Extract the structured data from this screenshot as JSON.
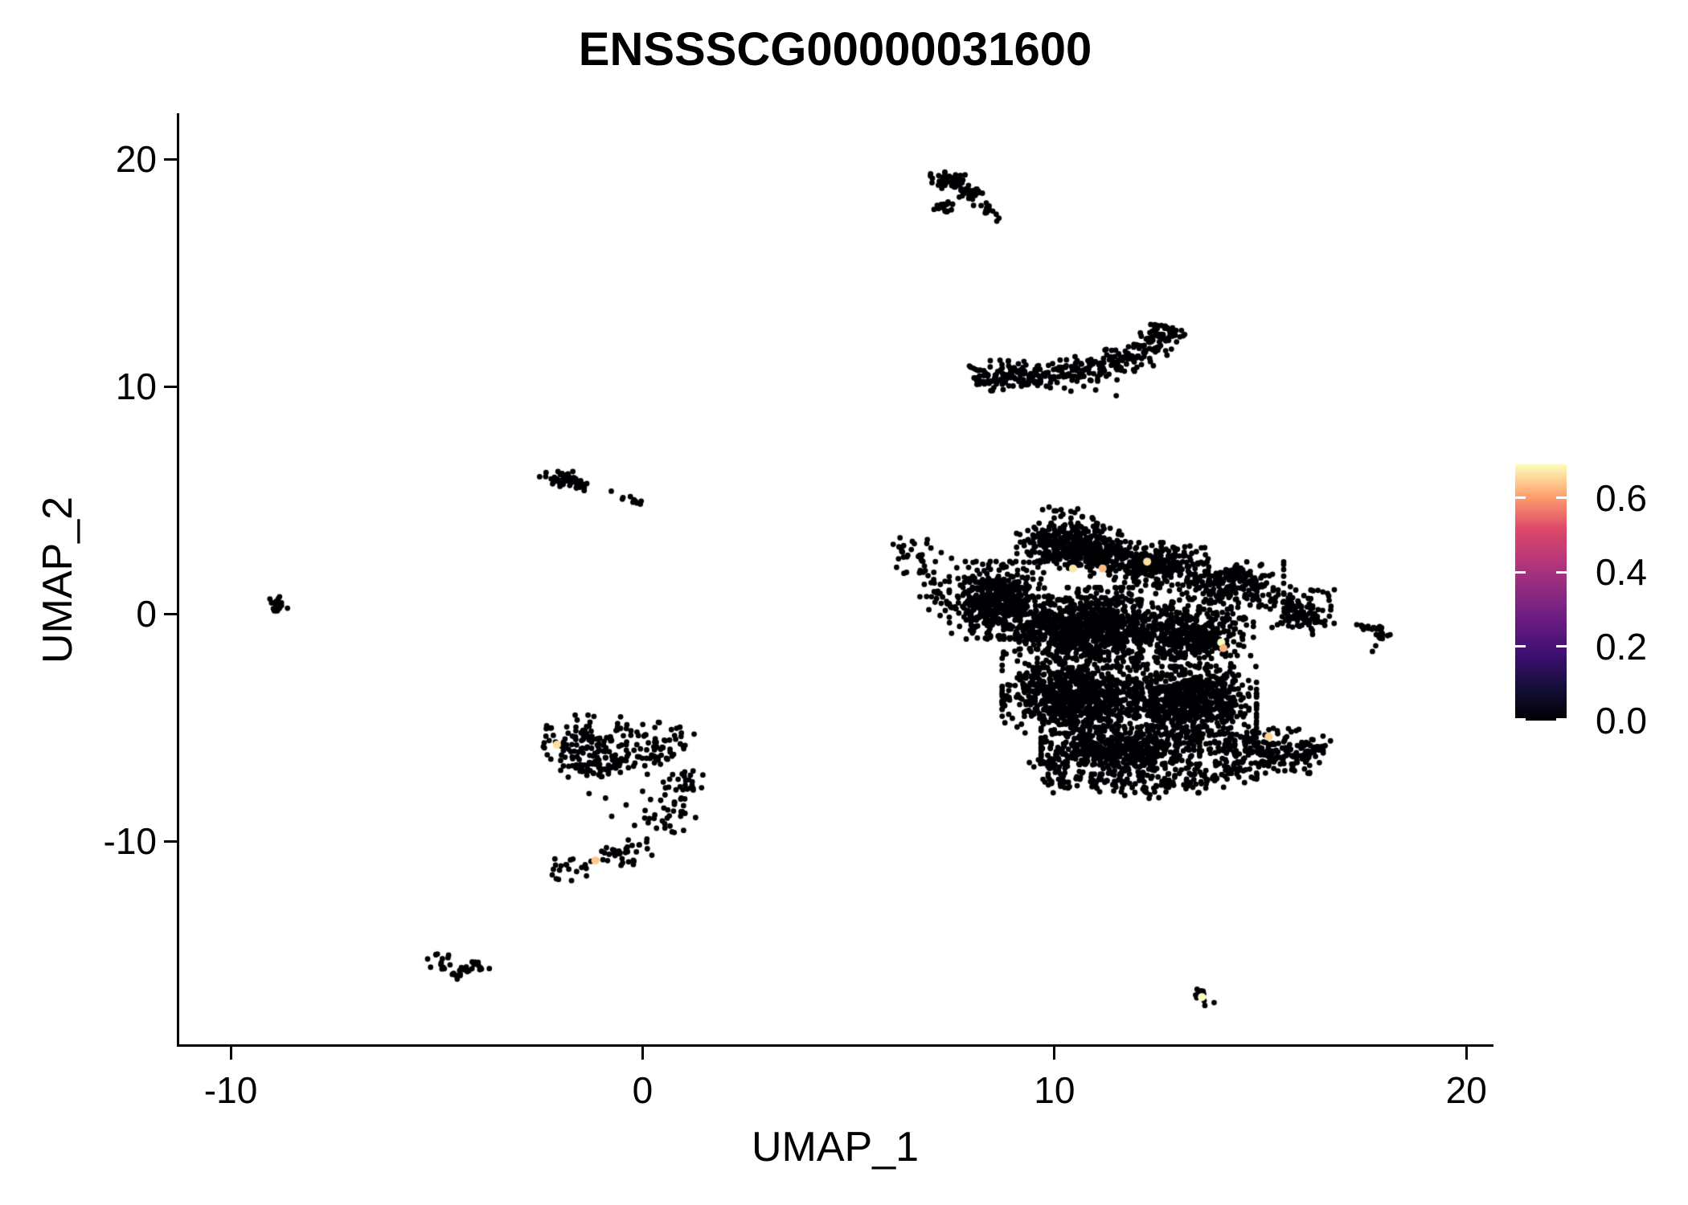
{
  "chart_data": {
    "type": "scatter",
    "title": "ENSSSCG00000031600",
    "xlabel": "UMAP_1",
    "ylabel": "UMAP_2",
    "x_range": [
      -11.25,
      20.6
    ],
    "y_range": [
      -19.0,
      21.95
    ],
    "grid": false,
    "axes": {
      "x": {
        "tick_values": [
          -10,
          0,
          10,
          20
        ],
        "tick_labels": [
          "-10",
          "0",
          "10",
          "20"
        ]
      },
      "y": {
        "tick_values": [
          20,
          10,
          0,
          -10
        ],
        "tick_labels": [
          "20",
          "10",
          "0",
          "-10"
        ]
      }
    },
    "legend": {
      "position": "right",
      "tick_values": [
        0.6,
        0.4,
        0.2,
        0.0
      ],
      "tick_labels": [
        "0.6",
        "0.4",
        "0.2",
        "0.0"
      ],
      "min": 0.0,
      "max": 0.69,
      "colormap": "magma",
      "stops": [
        [
          0.0,
          "#000004"
        ],
        [
          0.125,
          "#140e36"
        ],
        [
          0.25,
          "#3b0f70"
        ],
        [
          0.375,
          "#641a80"
        ],
        [
          0.5,
          "#8c2981"
        ],
        [
          0.625,
          "#b73779"
        ],
        [
          0.75,
          "#de4968"
        ],
        [
          0.875,
          "#fe9f6d"
        ],
        [
          0.9375,
          "#fecf92"
        ],
        [
          1.0,
          "#fcfdbf"
        ]
      ]
    },
    "point_color_zero": "#000004",
    "point_radius_px": 3.4,
    "clusters": [
      {
        "name": "top-comet",
        "parts": [
          {
            "kind": "blob",
            "cx": 7.45,
            "cy": 19.05,
            "rx": 0.42,
            "ry": 0.4,
            "n": 55
          },
          {
            "kind": "blob",
            "cx": 7.95,
            "cy": 18.55,
            "rx": 0.33,
            "ry": 0.3,
            "n": 30
          },
          {
            "kind": "blob",
            "cx": 7.35,
            "cy": 17.95,
            "rx": 0.25,
            "ry": 0.3,
            "n": 16
          },
          {
            "kind": "path",
            "w": 0.09,
            "n": 14,
            "pts": [
              [
                8.15,
                18.15
              ],
              [
                8.35,
                17.85
              ],
              [
                8.55,
                17.55
              ],
              [
                8.68,
                17.3
              ]
            ]
          }
        ]
      },
      {
        "name": "crescent",
        "parts": [
          {
            "kind": "path",
            "w": 0.3,
            "n": 340,
            "pts": [
              [
                7.95,
                10.45
              ],
              [
                8.7,
                10.5
              ],
              [
                9.5,
                10.55
              ],
              [
                10.3,
                10.6
              ],
              [
                11.0,
                10.75
              ],
              [
                11.6,
                11.05
              ],
              [
                12.1,
                11.55
              ],
              [
                12.5,
                12.1
              ],
              [
                12.8,
                12.65
              ]
            ]
          },
          {
            "kind": "path",
            "w": 0.1,
            "n": 22,
            "pts": [
              [
                8.0,
                10.3
              ],
              [
                8.8,
                10.25
              ],
              [
                9.6,
                10.2
              ]
            ]
          },
          {
            "kind": "dots",
            "pts": [
              [
                9.2,
                10.05
              ],
              [
                9.9,
                9.95
              ],
              [
                10.4,
                9.8
              ],
              [
                11.0,
                9.85
              ],
              [
                11.5,
                9.6
              ]
            ]
          }
        ]
      },
      {
        "name": "left-small",
        "parts": [
          {
            "kind": "blob",
            "cx": -1.95,
            "cy": 5.9,
            "rx": 0.5,
            "ry": 0.33,
            "n": 50
          },
          {
            "kind": "blob",
            "cx": -1.55,
            "cy": 5.55,
            "rx": 0.3,
            "ry": 0.2,
            "n": 14
          },
          {
            "kind": "dots",
            "pts": [
              [
                -0.76,
                5.4
              ]
            ]
          },
          {
            "kind": "path",
            "w": 0.07,
            "n": 9,
            "pts": [
              [
                -0.5,
                5.1
              ],
              [
                -0.25,
                4.95
              ],
              [
                -0.05,
                4.85
              ]
            ]
          }
        ]
      },
      {
        "name": "far-left-tiny",
        "parts": [
          {
            "kind": "blob",
            "cx": -8.85,
            "cy": 0.45,
            "rx": 0.26,
            "ry": 0.28,
            "n": 20
          }
        ]
      },
      {
        "name": "hook",
        "parts": [
          {
            "kind": "path",
            "w": 0.5,
            "n": 180,
            "pts": [
              [
                -2.4,
                -5.7
              ],
              [
                -1.7,
                -5.55
              ],
              [
                -1.0,
                -5.55
              ],
              [
                -0.3,
                -5.7
              ],
              [
                0.3,
                -5.9
              ],
              [
                0.85,
                -6.2
              ]
            ]
          },
          {
            "kind": "blob",
            "cx": -1.0,
            "cy": -6.7,
            "rx": 0.9,
            "ry": 0.45,
            "n": 60
          },
          {
            "kind": "path",
            "w": 0.3,
            "n": 60,
            "pts": [
              [
                0.9,
                -6.9
              ],
              [
                1.0,
                -7.6
              ],
              [
                0.85,
                -8.3
              ],
              [
                0.55,
                -9.0
              ],
              [
                0.25,
                -9.6
              ]
            ]
          },
          {
            "kind": "path",
            "w": 0.26,
            "n": 55,
            "pts": [
              [
                0.1,
                -9.9
              ],
              [
                -0.4,
                -10.45
              ],
              [
                -1.0,
                -10.85
              ],
              [
                -1.6,
                -11.15
              ],
              [
                -2.2,
                -11.45
              ]
            ]
          },
          {
            "kind": "dots",
            "pts": [
              [
                -0.9,
                -8.1
              ],
              [
                -0.4,
                -8.4
              ],
              [
                -0.75,
                -8.9
              ],
              [
                -1.3,
                -7.9
              ],
              [
                0.0,
                -7.8
              ]
            ]
          }
        ]
      },
      {
        "name": "bottom-left-v",
        "parts": [
          {
            "kind": "path",
            "w": 0.17,
            "n": 42,
            "pts": [
              [
                -5.15,
                -15.1
              ],
              [
                -4.85,
                -15.35
              ],
              [
                -4.55,
                -15.7
              ],
              [
                -4.35,
                -15.95
              ],
              [
                -4.15,
                -15.6
              ],
              [
                -3.95,
                -15.3
              ]
            ]
          }
        ]
      },
      {
        "name": "right-tiny",
        "parts": [
          {
            "kind": "path",
            "w": 0.11,
            "n": 14,
            "pts": [
              [
                17.35,
                -0.5
              ],
              [
                17.7,
                -0.6
              ],
              [
                18.0,
                -0.7
              ]
            ]
          },
          {
            "kind": "blob",
            "cx": 17.95,
            "cy": -0.95,
            "rx": 0.18,
            "ry": 0.25,
            "n": 12
          },
          {
            "kind": "dots",
            "pts": [
              [
                17.8,
                -1.4
              ],
              [
                17.72,
                -1.65
              ]
            ]
          }
        ]
      },
      {
        "name": "bottom-right-tiny",
        "parts": [
          {
            "kind": "path",
            "w": 0.09,
            "n": 11,
            "pts": [
              [
                13.32,
                -16.5
              ],
              [
                13.6,
                -16.85
              ],
              [
                13.85,
                -17.15
              ]
            ]
          }
        ]
      },
      {
        "name": "main",
        "parts": [
          {
            "kind": "path",
            "w": 0.26,
            "n": 60,
            "pts": [
              [
                6.35,
                3.15
              ],
              [
                6.55,
                2.6
              ],
              [
                6.75,
                1.95
              ],
              [
                7.0,
                1.25
              ],
              [
                7.2,
                0.55
              ],
              [
                7.35,
                -0.1
              ]
            ]
          },
          {
            "kind": "dots",
            "pts": [
              [
                6.25,
                3.35
              ],
              [
                6.9,
                3.1
              ],
              [
                7.0,
                2.9
              ],
              [
                7.25,
                2.7
              ],
              [
                7.5,
                2.45
              ]
            ]
          },
          {
            "kind": "blob",
            "cx": 8.6,
            "cy": 0.6,
            "rx": 1.05,
            "ry": 1.55,
            "n": 500
          },
          {
            "kind": "blob",
            "cx": 10.4,
            "cy": 3.0,
            "rx": 1.2,
            "ry": 0.9,
            "n": 400
          },
          {
            "kind": "path",
            "w": 0.18,
            "n": 16,
            "pts": [
              [
                9.9,
                4.25
              ],
              [
                10.45,
                4.6
              ],
              [
                10.95,
                4.25
              ]
            ]
          },
          {
            "kind": "blob",
            "cx": 12.3,
            "cy": 2.2,
            "rx": 1.3,
            "ry": 0.85,
            "n": 330
          },
          {
            "kind": "blob",
            "cx": 14.3,
            "cy": 1.3,
            "rx": 1.15,
            "ry": 0.9,
            "n": 220
          },
          {
            "kind": "blob",
            "cx": 15.9,
            "cy": 0.1,
            "rx": 0.85,
            "ry": 1.0,
            "n": 120
          },
          {
            "kind": "blob",
            "cx": 10.8,
            "cy": -0.6,
            "rx": 1.85,
            "ry": 1.6,
            "n": 1000
          },
          {
            "kind": "blob",
            "cx": 13.4,
            "cy": -0.9,
            "rx": 1.3,
            "ry": 1.3,
            "n": 420
          },
          {
            "kind": "blob",
            "cx": 10.6,
            "cy": -3.6,
            "rx": 1.7,
            "ry": 1.5,
            "n": 850
          },
          {
            "kind": "blob",
            "cx": 13.2,
            "cy": -3.8,
            "rx": 1.55,
            "ry": 1.35,
            "n": 650
          },
          {
            "kind": "blob",
            "cx": 11.6,
            "cy": -6.0,
            "rx": 1.75,
            "ry": 0.95,
            "n": 600
          },
          {
            "kind": "path",
            "w": 0.42,
            "n": 260,
            "pts": [
              [
                13.0,
                -5.2
              ],
              [
                14.0,
                -5.6
              ],
              [
                15.0,
                -5.9
              ],
              [
                15.9,
                -6.0
              ],
              [
                16.55,
                -6.15
              ]
            ]
          },
          {
            "kind": "path",
            "w": 0.28,
            "n": 200,
            "pts": [
              [
                10.9,
                -7.3
              ],
              [
                12.0,
                -7.6
              ],
              [
                13.0,
                -7.4
              ],
              [
                14.0,
                -7.0
              ],
              [
                15.0,
                -6.6
              ],
              [
                15.8,
                -6.3
              ]
            ]
          },
          {
            "kind": "path",
            "w": 0.26,
            "n": 60,
            "pts": [
              [
                9.8,
                -6.2
              ],
              [
                10.1,
                -6.9
              ],
              [
                10.45,
                -7.55
              ]
            ]
          }
        ]
      }
    ],
    "highlighted_points": [
      {
        "x": -2.08,
        "y": -5.75,
        "value": 0.66
      },
      {
        "x": -1.15,
        "y": -10.85,
        "value": 0.64
      },
      {
        "x": 10.45,
        "y": 2.0,
        "value": 0.67
      },
      {
        "x": 11.17,
        "y": 2.0,
        "value": 0.63
      },
      {
        "x": 12.25,
        "y": 2.3,
        "value": 0.66
      },
      {
        "x": 14.05,
        "y": -1.25,
        "value": 0.69
      },
      {
        "x": 14.1,
        "y": -1.5,
        "value": 0.62
      },
      {
        "x": 15.2,
        "y": -5.4,
        "value": 0.65
      },
      {
        "x": 13.58,
        "y": -16.85,
        "value": 0.69
      }
    ]
  }
}
